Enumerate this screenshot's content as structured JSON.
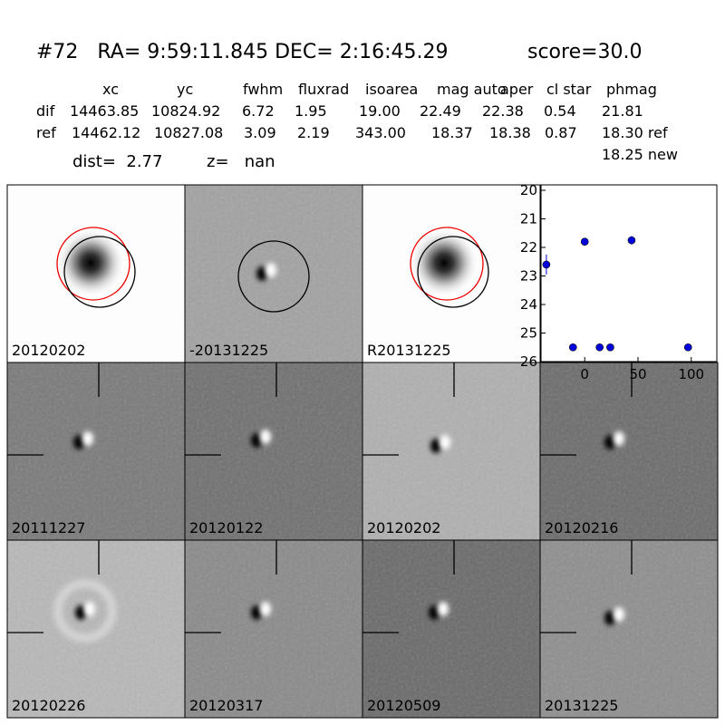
{
  "header": {
    "title": "#72   RA= 9:59:11.845 DEC= 2:16:45.29",
    "score": "score=30.0"
  },
  "table": {
    "columns": [
      "xc",
      "yc",
      "fwhm",
      "fluxrad",
      "isoarea",
      "mag auto",
      "aper",
      "cl star",
      "phmag"
    ],
    "rows": [
      [
        "dif",
        "14463.85",
        "10824.92",
        "6.72",
        "1.95",
        "19.00",
        "22.49",
        "22.38",
        "0.54",
        "21.81"
      ],
      [
        "ref",
        "14462.12",
        "10827.08",
        "3.09",
        "2.19",
        "343.00",
        "18.37",
        "18.38",
        "0.87",
        "18.30 ref"
      ]
    ],
    "extra": "18.25 new"
  },
  "dist": "dist=  2.77",
  "z": "z=   nan",
  "panels": [
    {
      "label": "20120202"
    },
    {
      "label": "-20131225"
    },
    {
      "label": "R20131225"
    },
    {
      "label": "20111227"
    },
    {
      "label": "20120122"
    },
    {
      "label": "20120202",
      "color": "#ff0000"
    },
    {
      "label": "20120216"
    },
    {
      "label": "20120226"
    },
    {
      "label": "20120317"
    },
    {
      "label": "20120509"
    },
    {
      "label": "20131225"
    }
  ],
  "chart_data": {
    "type": "scatter",
    "color": "#0000dd",
    "x": [
      -36,
      -11,
      0,
      14,
      24,
      44,
      97
    ],
    "values": [
      22.6,
      25.5,
      21.8,
      25.5,
      25.5,
      21.75,
      25.5
    ],
    "errors": [
      0.35,
      0.1,
      0.12,
      0.1,
      0.1,
      0.15,
      0.1
    ],
    "xlim": [
      -41,
      124
    ],
    "ylim": [
      26,
      20
    ],
    "xticks": [
      0,
      50,
      100
    ],
    "yticks": [
      20,
      21,
      22,
      23,
      24,
      25,
      26
    ]
  }
}
